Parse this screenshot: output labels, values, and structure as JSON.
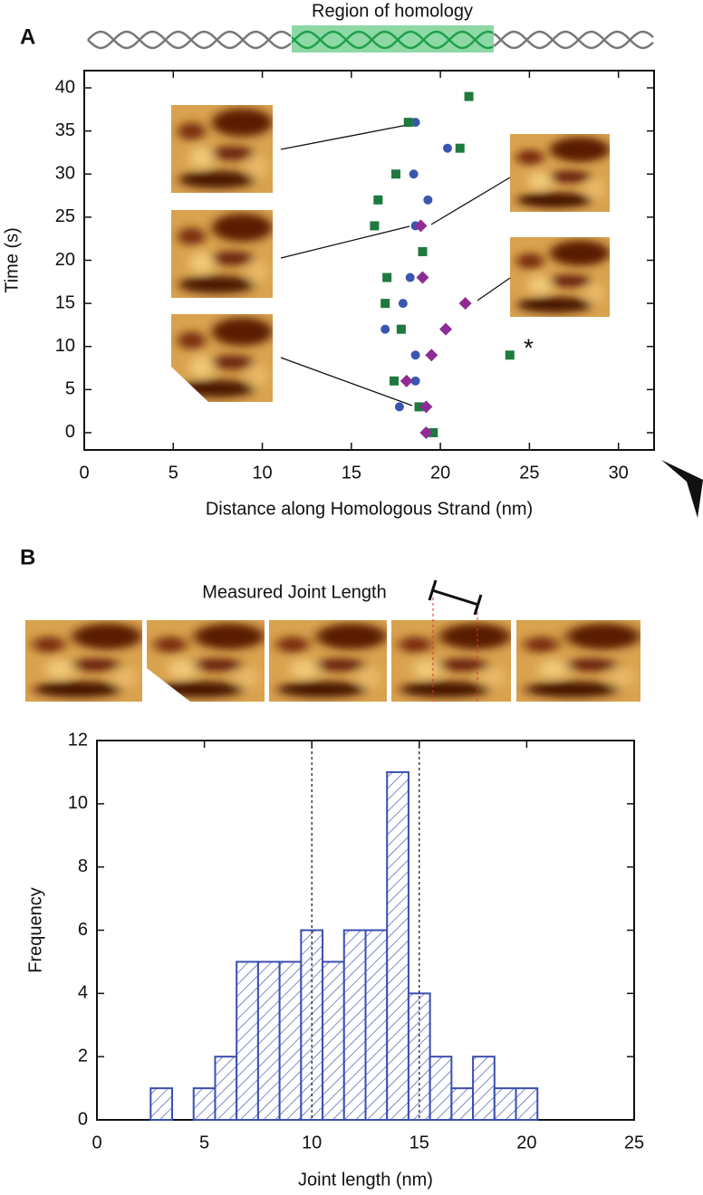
{
  "chart_data": [
    {
      "type": "scatter",
      "panel_label": "A",
      "header_label": "Region of homology",
      "x_label": "Distance along Homologous Strand (nm)",
      "y_label": "Time (s)",
      "annotation": "*",
      "xlim": [
        0,
        32
      ],
      "ylim": [
        -2,
        42
      ],
      "xticks": [
        0,
        5,
        10,
        15,
        20,
        25,
        30
      ],
      "yticks": [
        0,
        5,
        10,
        15,
        20,
        25,
        30,
        35,
        40
      ],
      "series": [
        {
          "color": "#3a56b0",
          "marker": "circle",
          "x": [
            19.2,
            17.7,
            18.6,
            18.6,
            16.9,
            17.9,
            18.3,
            19.0,
            18.6,
            19.3,
            18.5,
            20.4,
            18.6
          ],
          "values": [
            0,
            3,
            6,
            9,
            12,
            15,
            18,
            21,
            24,
            27,
            30,
            33,
            36
          ]
        },
        {
          "color": "#1e7a3e",
          "marker": "square",
          "x": [
            19.6,
            18.8,
            17.4,
            23.9,
            17.8,
            16.9,
            17.0,
            19.0,
            16.3,
            16.5,
            17.5,
            21.1,
            18.2,
            21.6
          ],
          "values": [
            0,
            3,
            6,
            9,
            12,
            15,
            18,
            21,
            24,
            27,
            30,
            33,
            36,
            39
          ]
        },
        {
          "color": "#8e2c96",
          "marker": "diamond",
          "x": [
            19.2,
            19.2,
            18.1,
            19.5,
            20.3,
            21.4,
            19.0,
            18.9
          ],
          "values": [
            0,
            3,
            6,
            9,
            12,
            15,
            18,
            24
          ]
        }
      ]
    },
    {
      "type": "histogram",
      "panel_label": "B",
      "image_caption": "Measured Joint Length",
      "x_label": "Joint length (nm)",
      "y_label": "Frequency",
      "xlim": [
        0,
        25
      ],
      "ylim": [
        0,
        12
      ],
      "xticks": [
        0,
        5,
        10,
        15,
        20,
        25
      ],
      "yticks": [
        0,
        2,
        4,
        6,
        8,
        10,
        12
      ],
      "bins": [
        2.5,
        3.5,
        4.5,
        5.5,
        6.5,
        7.5,
        8.5,
        9.5,
        10.5,
        11.5,
        12.5,
        13.5,
        14.5,
        15.5,
        16.5,
        17.5,
        18.5,
        19.5,
        20.5
      ],
      "values": [
        1,
        0,
        1,
        2,
        5,
        5,
        5,
        6,
        5,
        6,
        6,
        11,
        4,
        2,
        1,
        2,
        1,
        1
      ],
      "color": "#3a4fb0",
      "hatch": true,
      "vlines": [
        10,
        15
      ]
    }
  ]
}
